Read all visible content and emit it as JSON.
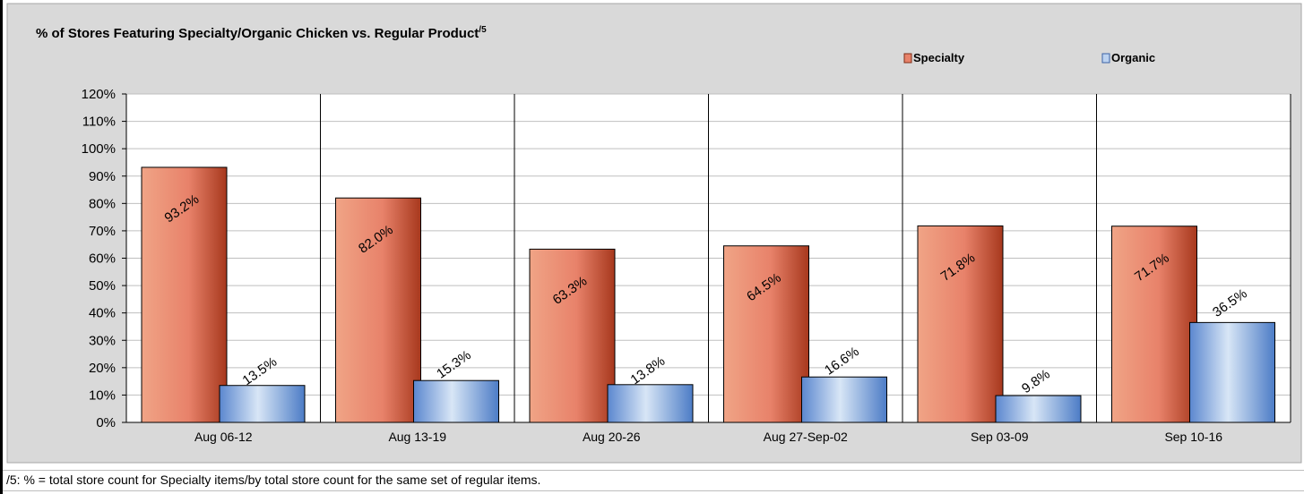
{
  "chart_data": {
    "type": "bar",
    "title": "% of Stores Featuring Specialty/Organic Chicken vs. Regular Product",
    "title_superscript": "/5",
    "categories": [
      "Aug 06-12",
      "Aug 13-19",
      "Aug 20-26",
      "Aug 27-Sep-02",
      "Sep 03-09",
      "Sep 10-16"
    ],
    "series": [
      {
        "name": "Specialty",
        "values": [
          93.2,
          82.0,
          63.3,
          64.5,
          71.8,
          71.7
        ],
        "labels": [
          "93.2%",
          "82.0%",
          "63.3%",
          "64.5%",
          "71.8%",
          "71.7%"
        ],
        "color": "#e8826a"
      },
      {
        "name": "Organic",
        "values": [
          13.5,
          15.3,
          13.8,
          16.6,
          9.8,
          36.5
        ],
        "labels": [
          "13.5%",
          "15.3%",
          "13.8%",
          "16.6%",
          "9.8%",
          "36.5%"
        ],
        "color": "#6f9ad8"
      }
    ],
    "y_ticks": [
      "0%",
      "10%",
      "20%",
      "30%",
      "40%",
      "50%",
      "60%",
      "70%",
      "80%",
      "90%",
      "100%",
      "110%",
      "120%"
    ],
    "ylim": [
      0,
      120
    ],
    "grid": true,
    "legend": "top-right"
  },
  "footnote": "/5: % = total store count for Specialty items/by total store count for the same set of regular items.",
  "colors": {
    "plot_background": "#ffffff",
    "chart_background": "#d9d9d9"
  }
}
